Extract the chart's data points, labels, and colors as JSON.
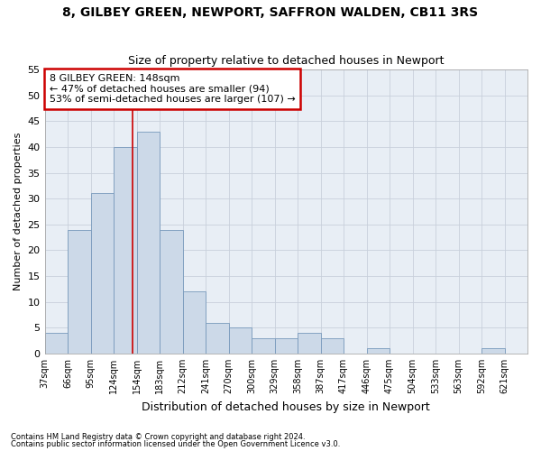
{
  "title1": "8, GILBEY GREEN, NEWPORT, SAFFRON WALDEN, CB11 3RS",
  "title2": "Size of property relative to detached houses in Newport",
  "xlabel": "Distribution of detached houses by size in Newport",
  "ylabel": "Number of detached properties",
  "categories": [
    "37sqm",
    "66sqm",
    "95sqm",
    "124sqm",
    "154sqm",
    "183sqm",
    "212sqm",
    "241sqm",
    "270sqm",
    "300sqm",
    "329sqm",
    "358sqm",
    "387sqm",
    "417sqm",
    "446sqm",
    "475sqm",
    "504sqm",
    "533sqm",
    "563sqm",
    "592sqm",
    "621sqm"
  ],
  "values": [
    4,
    24,
    31,
    40,
    43,
    24,
    12,
    6,
    5,
    3,
    3,
    4,
    3,
    0,
    1,
    0,
    0,
    0,
    0,
    1,
    0
  ],
  "bar_color": "#ccd9e8",
  "bar_edge_color": "#7799bb",
  "grid_color": "#c8d0db",
  "background_color": "#e8eef5",
  "property_line_value": 148,
  "bin_starts": [
    37,
    66,
    95,
    124,
    154,
    183,
    212,
    241,
    270,
    300,
    329,
    358,
    387,
    417,
    446,
    475,
    504,
    533,
    563,
    592,
    621
  ],
  "bin_width": 29,
  "annotation_text": "8 GILBEY GREEN: 148sqm\n← 47% of detached houses are smaller (94)\n53% of semi-detached houses are larger (107) →",
  "annotation_box_color": "#ffffff",
  "annotation_box_edge": "#cc0000",
  "ylim": [
    0,
    55
  ],
  "yticks": [
    0,
    5,
    10,
    15,
    20,
    25,
    30,
    35,
    40,
    45,
    50,
    55
  ],
  "footnote1": "Contains HM Land Registry data © Crown copyright and database right 2024.",
  "footnote2": "Contains public sector information licensed under the Open Government Licence v3.0."
}
